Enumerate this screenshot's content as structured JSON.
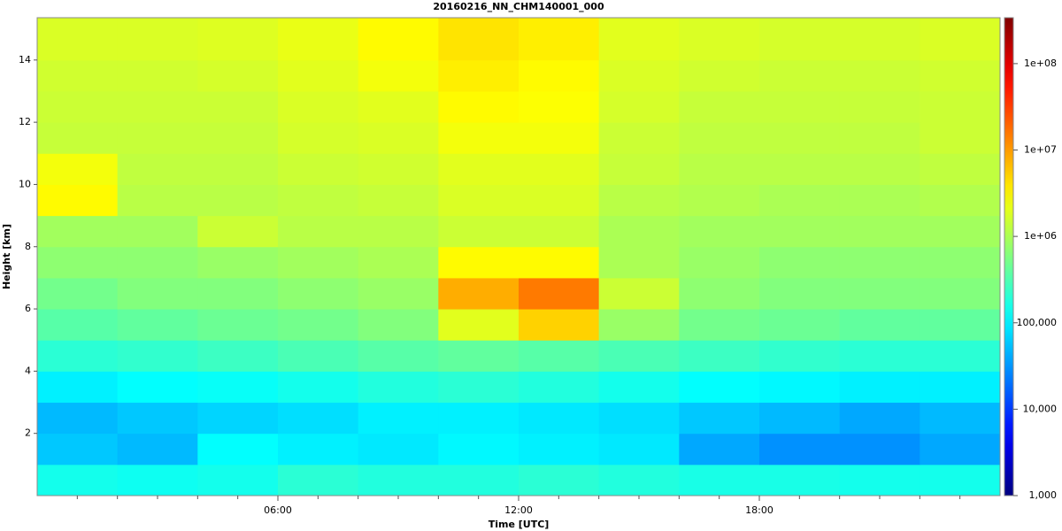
{
  "chart_data": {
    "type": "heatmap",
    "title": "20160216_NN_CHM140001_000",
    "x_label": "Time [UTC]",
    "y_label": "Height [km]",
    "xlim": [
      0,
      24
    ],
    "ylim": [
      0,
      15.36
    ],
    "xticks": [
      {
        "value": 6,
        "label": "06:00"
      },
      {
        "value": 12,
        "label": "12:00"
      },
      {
        "value": 18,
        "label": "18:00"
      }
    ],
    "xminor_ticks": [
      1,
      2,
      3,
      4,
      5,
      7,
      8,
      9,
      10,
      11,
      13,
      14,
      15,
      16,
      17,
      19,
      20,
      21,
      22,
      23
    ],
    "yticks": [
      2,
      4,
      6,
      8,
      10,
      12,
      14
    ],
    "colormap": "jet",
    "color_scale": "log",
    "clim": [
      1000,
      340000000
    ],
    "cticks": [
      {
        "value": 1000,
        "label": "1,000"
      },
      {
        "value": 10000,
        "label": "10,000"
      },
      {
        "value": 100000,
        "label": "100,000"
      },
      {
        "value": 1000000,
        "label": "1e+06"
      },
      {
        "value": 10000000,
        "label": "1e+07"
      },
      {
        "value": 100000000,
        "label": "1e+08"
      }
    ],
    "x_edges": [
      0,
      2,
      4,
      6,
      8,
      10,
      12,
      14,
      16,
      18,
      20,
      22,
      24
    ],
    "y_edges": [
      0,
      1,
      2,
      3,
      4,
      5,
      6,
      7,
      8,
      9,
      10,
      11,
      12,
      13,
      14,
      15.36
    ],
    "z": [
      [
        150000,
        140000,
        150000,
        200000,
        180000,
        180000,
        200000,
        180000,
        160000,
        160000,
        150000,
        150000
      ],
      [
        60000,
        50000,
        120000,
        100000,
        90000,
        110000,
        100000,
        90000,
        40000,
        30000,
        30000,
        40000
      ],
      [
        50000,
        60000,
        70000,
        80000,
        100000,
        100000,
        90000,
        80000,
        60000,
        50000,
        40000,
        50000
      ],
      [
        100000,
        120000,
        130000,
        150000,
        180000,
        200000,
        180000,
        150000,
        120000,
        110000,
        100000,
        100000
      ],
      [
        200000,
        220000,
        250000,
        300000,
        350000,
        400000,
        350000,
        300000,
        250000,
        220000,
        200000,
        200000
      ],
      [
        350000,
        400000,
        450000,
        500000,
        600000,
        2000000,
        5000000,
        800000,
        500000,
        450000,
        400000,
        400000
      ],
      [
        500000,
        600000,
        600000,
        700000,
        800000,
        8000000,
        15000000,
        1500000,
        700000,
        600000,
        600000,
        600000
      ],
      [
        700000,
        700000,
        800000,
        900000,
        1000000,
        3000000,
        3000000,
        1000000,
        800000,
        700000,
        700000,
        700000
      ],
      [
        900000,
        900000,
        1500000,
        1200000,
        1200000,
        1500000,
        1500000,
        1000000,
        900000,
        900000,
        900000,
        900000
      ],
      [
        3000000,
        1200000,
        1200000,
        1300000,
        1400000,
        1800000,
        1800000,
        1200000,
        1100000,
        1000000,
        1000000,
        1100000
      ],
      [
        2500000,
        1300000,
        1300000,
        1500000,
        1600000,
        2000000,
        2000000,
        1400000,
        1200000,
        1200000,
        1200000,
        1300000
      ],
      [
        1400000,
        1400000,
        1400000,
        1700000,
        1800000,
        2500000,
        2500000,
        1500000,
        1300000,
        1300000,
        1300000,
        1500000
      ],
      [
        1500000,
        1500000,
        1500000,
        1800000,
        2000000,
        3000000,
        2800000,
        1700000,
        1400000,
        1400000,
        1400000,
        1500000
      ],
      [
        1600000,
        1600000,
        1700000,
        2000000,
        2500000,
        3500000,
        3000000,
        1800000,
        1600000,
        1500000,
        1500000,
        1600000
      ],
      [
        1800000,
        1800000,
        1900000,
        2200000,
        3000000,
        4000000,
        3500000,
        2000000,
        1800000,
        1700000,
        1700000,
        1800000
      ]
    ]
  }
}
